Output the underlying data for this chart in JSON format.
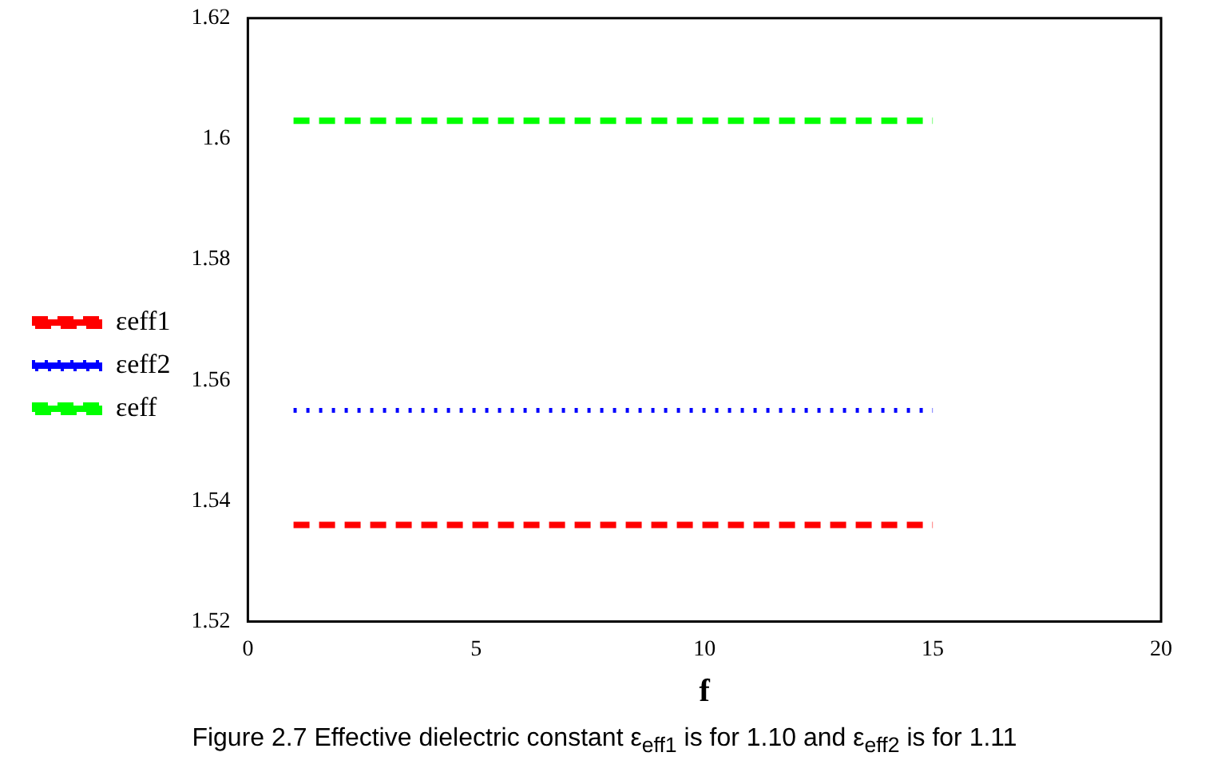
{
  "chart_data": {
    "type": "line",
    "xlabel": "f",
    "x": [
      1,
      15
    ],
    "series": [
      {
        "name": "εeff1",
        "color": "#ff0000",
        "values": [
          1.536,
          1.536
        ],
        "line_style": "dashed"
      },
      {
        "name": "εeff2",
        "color": "#0000ff",
        "values": [
          1.555,
          1.555
        ],
        "line_style": "dotted"
      },
      {
        "name": "εeff",
        "color": "#00ff00",
        "values": [
          1.603,
          1.603
        ],
        "line_style": "dashed"
      }
    ],
    "xlim": [
      0,
      20
    ],
    "xticks": [
      0,
      5,
      10,
      15,
      20
    ],
    "ylim": [
      1.52,
      1.62
    ],
    "yticks": [
      1.52,
      1.54,
      1.56,
      1.58,
      1.6,
      1.62
    ],
    "grid": false,
    "legend": "left",
    "marker": "none",
    "annotations": [
      "Figure 2.7 Effective dielectric constant ε$_{eff1}$ is for 1.10 and ε$_{eff2}$ is for 1.11"
    ]
  }
}
